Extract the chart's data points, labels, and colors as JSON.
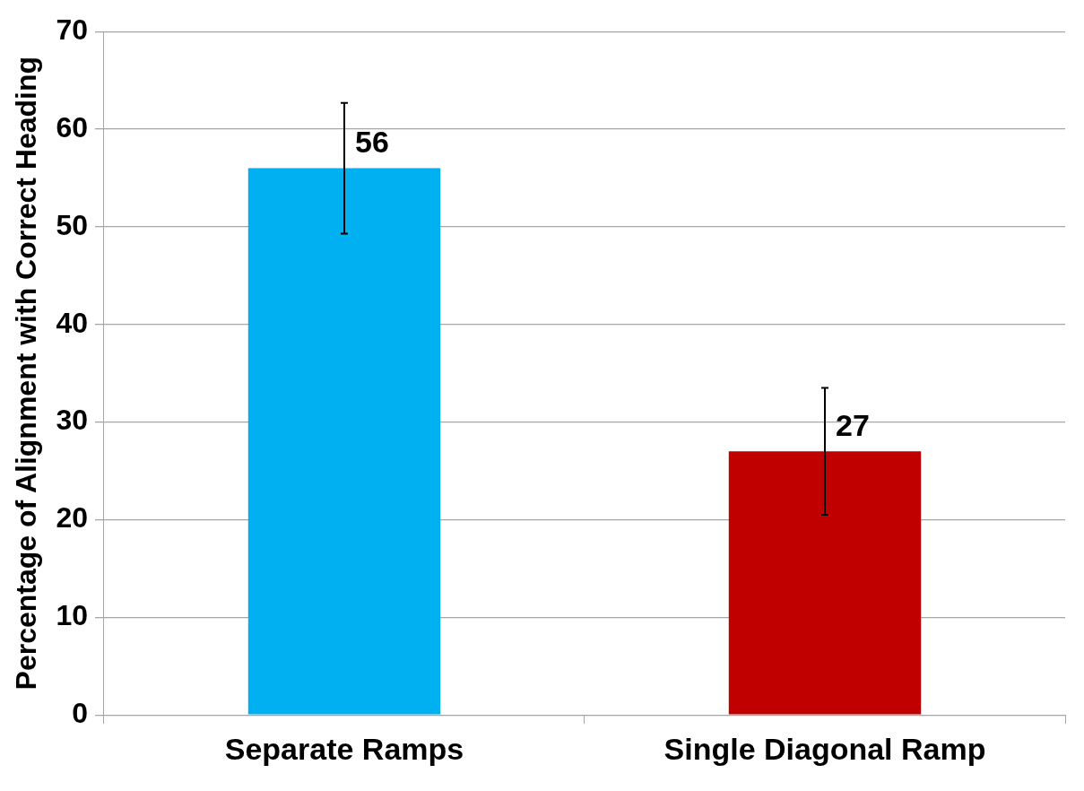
{
  "chart_data": {
    "type": "bar",
    "ylabel": "Percentage of Alignment with Correct Heading",
    "categories": [
      "Separate Ramps",
      "Single Diagonal Ramp"
    ],
    "values": [
      56,
      27
    ],
    "colors": [
      "#00b0f0",
      "#c00000"
    ],
    "errors": [
      6.7,
      6.5
    ],
    "ylim": [
      0,
      70
    ],
    "yticks": [
      0,
      10,
      20,
      30,
      40,
      50,
      60,
      70
    ],
    "grid": "y",
    "legend": false,
    "data_labels": true
  }
}
